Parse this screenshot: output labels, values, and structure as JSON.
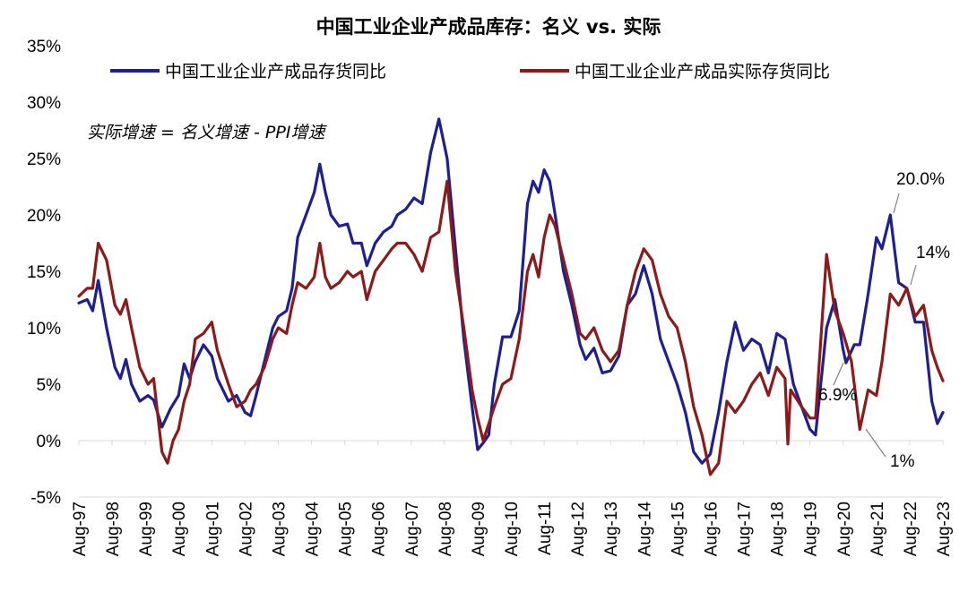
{
  "chart_data": {
    "type": "line",
    "title": "中国工业企业产成品库存：名义 vs. 实际",
    "note": "实际增速 = 名义增速 - PPI增速",
    "y_unit": "%",
    "ylim": [
      -5,
      35
    ],
    "yticks": [
      -5,
      0,
      5,
      10,
      15,
      20,
      25,
      30,
      35
    ],
    "ytick_labels": [
      "-5%",
      "0%",
      "5%",
      "10%",
      "15%",
      "20%",
      "25%",
      "30%",
      "35%"
    ],
    "xlim": [
      "1997-08",
      "2023-08"
    ],
    "xticks": [
      "Aug-97",
      "Aug-98",
      "Aug-99",
      "Aug-00",
      "Aug-01",
      "Aug-02",
      "Aug-03",
      "Aug-04",
      "Aug-05",
      "Aug-06",
      "Aug-07",
      "Aug-08",
      "Aug-09",
      "Aug-10",
      "Aug-11",
      "Aug-12",
      "Aug-13",
      "Aug-14",
      "Aug-15",
      "Aug-16",
      "Aug-17",
      "Aug-18",
      "Aug-19",
      "Aug-20",
      "Aug-21",
      "Aug-22",
      "Aug-23"
    ],
    "legend_position": "top",
    "grid": false,
    "series": [
      {
        "name": "中国工业企业产成品存货同比",
        "color": "#1f1f8f",
        "points": [
          [
            "1997-08",
            12.2
          ],
          [
            "1997-11",
            12.5
          ],
          [
            "1998-01",
            11.5
          ],
          [
            "1998-03",
            14.2
          ],
          [
            "1998-06",
            10.0
          ],
          [
            "1998-09",
            6.5
          ],
          [
            "1998-11",
            5.5
          ],
          [
            "1999-01",
            7.2
          ],
          [
            "1999-03",
            5.0
          ],
          [
            "1999-06",
            3.5
          ],
          [
            "1999-09",
            4.0
          ],
          [
            "1999-11",
            3.6
          ],
          [
            "2000-02",
            1.2
          ],
          [
            "2000-05",
            2.8
          ],
          [
            "2000-08",
            4.0
          ],
          [
            "2000-10",
            6.8
          ],
          [
            "2000-12",
            5.5
          ],
          [
            "2001-02",
            7.0
          ],
          [
            "2001-05",
            8.5
          ],
          [
            "2001-08",
            7.5
          ],
          [
            "2001-10",
            5.5
          ],
          [
            "2001-12",
            4.5
          ],
          [
            "2002-02",
            3.5
          ],
          [
            "2002-05",
            4.0
          ],
          [
            "2002-08",
            2.5
          ],
          [
            "2002-10",
            2.2
          ],
          [
            "2002-12",
            4.0
          ],
          [
            "2003-03",
            7.0
          ],
          [
            "2003-06",
            10.0
          ],
          [
            "2003-08",
            11.0
          ],
          [
            "2003-11",
            11.5
          ],
          [
            "2004-01",
            13.5
          ],
          [
            "2004-03",
            18.0
          ],
          [
            "2004-06",
            20.0
          ],
          [
            "2004-09",
            22.0
          ],
          [
            "2004-11",
            24.5
          ],
          [
            "2005-01",
            22.0
          ],
          [
            "2005-03",
            20.0
          ],
          [
            "2005-06",
            19.0
          ],
          [
            "2005-09",
            19.2
          ],
          [
            "2005-11",
            17.5
          ],
          [
            "2006-02",
            17.5
          ],
          [
            "2006-04",
            15.5
          ],
          [
            "2006-07",
            17.5
          ],
          [
            "2006-10",
            18.5
          ],
          [
            "2007-01",
            19.0
          ],
          [
            "2007-03",
            20.0
          ],
          [
            "2007-06",
            20.5
          ],
          [
            "2007-09",
            21.5
          ],
          [
            "2007-12",
            21.0
          ],
          [
            "2008-03",
            25.5
          ],
          [
            "2008-06",
            28.5
          ],
          [
            "2008-09",
            25.0
          ],
          [
            "2008-12",
            17.0
          ],
          [
            "2009-03",
            9.0
          ],
          [
            "2009-06",
            3.0
          ],
          [
            "2009-08",
            -0.8
          ],
          [
            "2009-10",
            -0.2
          ],
          [
            "2009-12",
            0.5
          ],
          [
            "2010-02",
            5.0
          ],
          [
            "2010-05",
            9.2
          ],
          [
            "2010-08",
            9.2
          ],
          [
            "2010-11",
            11.5
          ],
          [
            "2011-02",
            21.0
          ],
          [
            "2011-04",
            23.0
          ],
          [
            "2011-06",
            22.0
          ],
          [
            "2011-08",
            24.0
          ],
          [
            "2011-10",
            23.0
          ],
          [
            "2011-12",
            20.0
          ],
          [
            "2012-03",
            15.0
          ],
          [
            "2012-06",
            12.0
          ],
          [
            "2012-09",
            8.5
          ],
          [
            "2012-11",
            7.2
          ],
          [
            "2013-02",
            8.2
          ],
          [
            "2013-05",
            6.0
          ],
          [
            "2013-08",
            6.2
          ],
          [
            "2013-11",
            7.5
          ],
          [
            "2014-02",
            12.0
          ],
          [
            "2014-05",
            13.0
          ],
          [
            "2014-08",
            15.5
          ],
          [
            "2014-11",
            13.0
          ],
          [
            "2015-02",
            9.0
          ],
          [
            "2015-05",
            7.0
          ],
          [
            "2015-08",
            5.0
          ],
          [
            "2015-11",
            2.5
          ],
          [
            "2016-02",
            -1.0
          ],
          [
            "2016-05",
            -2.0
          ],
          [
            "2016-08",
            -1.2
          ],
          [
            "2016-11",
            2.5
          ],
          [
            "2017-02",
            7.0
          ],
          [
            "2017-05",
            10.5
          ],
          [
            "2017-08",
            8.0
          ],
          [
            "2017-11",
            9.0
          ],
          [
            "2018-02",
            8.5
          ],
          [
            "2018-05",
            6.0
          ],
          [
            "2018-08",
            9.5
          ],
          [
            "2018-11",
            9.0
          ],
          [
            "2019-02",
            5.0
          ],
          [
            "2019-05",
            3.0
          ],
          [
            "2019-08",
            1.0
          ],
          [
            "2019-10",
            0.5
          ],
          [
            "2020-02",
            10.0
          ],
          [
            "2020-05",
            12.5
          ],
          [
            "2020-08",
            8.0
          ],
          [
            "2020-09",
            6.9
          ],
          [
            "2020-12",
            8.5
          ],
          [
            "2021-02",
            8.5
          ],
          [
            "2021-05",
            13.0
          ],
          [
            "2021-08",
            18.0
          ],
          [
            "2021-10",
            17.0
          ],
          [
            "2022-01",
            20.0
          ],
          [
            "2022-04",
            14.0
          ],
          [
            "2022-07",
            13.5
          ],
          [
            "2022-10",
            10.5
          ],
          [
            "2023-01",
            10.5
          ],
          [
            "2023-04",
            3.5
          ],
          [
            "2023-06",
            1.5
          ],
          [
            "2023-08",
            2.5
          ]
        ]
      },
      {
        "name": "中国工业企业产成品实际存货同比",
        "color": "#8b1a1a",
        "points": [
          [
            "1997-08",
            12.8
          ],
          [
            "1997-11",
            13.5
          ],
          [
            "1998-01",
            13.5
          ],
          [
            "1998-03",
            17.5
          ],
          [
            "1998-06",
            16.0
          ],
          [
            "1998-09",
            12.0
          ],
          [
            "1998-11",
            11.2
          ],
          [
            "1999-01",
            12.5
          ],
          [
            "1999-03",
            10.0
          ],
          [
            "1999-06",
            6.5
          ],
          [
            "1999-09",
            5.0
          ],
          [
            "1999-11",
            5.5
          ],
          [
            "2000-02",
            -1.0
          ],
          [
            "2000-04",
            -2.0
          ],
          [
            "2000-06",
            0.0
          ],
          [
            "2000-08",
            1.0
          ],
          [
            "2000-10",
            3.5
          ],
          [
            "2000-12",
            5.0
          ],
          [
            "2001-02",
            9.0
          ],
          [
            "2001-05",
            9.5
          ],
          [
            "2001-08",
            10.5
          ],
          [
            "2001-10",
            8.0
          ],
          [
            "2001-12",
            6.5
          ],
          [
            "2002-02",
            5.0
          ],
          [
            "2002-05",
            3.0
          ],
          [
            "2002-08",
            3.5
          ],
          [
            "2002-10",
            4.5
          ],
          [
            "2002-12",
            5.0
          ],
          [
            "2003-03",
            6.5
          ],
          [
            "2003-06",
            9.0
          ],
          [
            "2003-08",
            10.0
          ],
          [
            "2003-11",
            9.5
          ],
          [
            "2004-01",
            12.0
          ],
          [
            "2004-03",
            14.0
          ],
          [
            "2004-06",
            13.5
          ],
          [
            "2004-09",
            14.5
          ],
          [
            "2004-11",
            17.5
          ],
          [
            "2005-01",
            14.5
          ],
          [
            "2005-03",
            13.5
          ],
          [
            "2005-06",
            14.0
          ],
          [
            "2005-09",
            15.0
          ],
          [
            "2005-11",
            14.5
          ],
          [
            "2006-02",
            15.0
          ],
          [
            "2006-04",
            12.5
          ],
          [
            "2006-07",
            15.0
          ],
          [
            "2006-10",
            16.0
          ],
          [
            "2007-01",
            17.0
          ],
          [
            "2007-03",
            17.5
          ],
          [
            "2007-06",
            17.5
          ],
          [
            "2007-09",
            16.5
          ],
          [
            "2007-12",
            15.0
          ],
          [
            "2008-03",
            18.0
          ],
          [
            "2008-06",
            18.5
          ],
          [
            "2008-09",
            23.0
          ],
          [
            "2008-12",
            15.0
          ],
          [
            "2009-03",
            10.0
          ],
          [
            "2009-06",
            4.5
          ],
          [
            "2009-08",
            2.0
          ],
          [
            "2009-10",
            0.0
          ],
          [
            "2009-12",
            1.5
          ],
          [
            "2010-02",
            3.0
          ],
          [
            "2010-05",
            5.0
          ],
          [
            "2010-08",
            5.5
          ],
          [
            "2010-11",
            9.0
          ],
          [
            "2011-02",
            15.0
          ],
          [
            "2011-04",
            16.5
          ],
          [
            "2011-06",
            14.5
          ],
          [
            "2011-08",
            18.0
          ],
          [
            "2011-10",
            20.0
          ],
          [
            "2011-12",
            19.0
          ],
          [
            "2012-03",
            16.0
          ],
          [
            "2012-06",
            13.0
          ],
          [
            "2012-09",
            9.5
          ],
          [
            "2012-11",
            9.0
          ],
          [
            "2013-02",
            10.0
          ],
          [
            "2013-05",
            8.0
          ],
          [
            "2013-08",
            7.0
          ],
          [
            "2013-11",
            8.0
          ],
          [
            "2014-02",
            12.0
          ],
          [
            "2014-05",
            15.0
          ],
          [
            "2014-08",
            17.0
          ],
          [
            "2014-11",
            16.0
          ],
          [
            "2015-02",
            13.0
          ],
          [
            "2015-05",
            11.0
          ],
          [
            "2015-08",
            10.0
          ],
          [
            "2015-11",
            7.0
          ],
          [
            "2016-02",
            3.0
          ],
          [
            "2016-05",
            0.5
          ],
          [
            "2016-08",
            -3.0
          ],
          [
            "2016-11",
            -2.0
          ],
          [
            "2017-02",
            3.5
          ],
          [
            "2017-05",
            2.5
          ],
          [
            "2017-08",
            3.5
          ],
          [
            "2017-11",
            5.0
          ],
          [
            "2018-02",
            6.0
          ],
          [
            "2018-05",
            4.0
          ],
          [
            "2018-08",
            6.5
          ],
          [
            "2018-11",
            5.5
          ],
          [
            "2018-12",
            -0.3
          ],
          [
            "2019-01",
            4.5
          ],
          [
            "2019-05",
            3.0
          ],
          [
            "2019-08",
            2.0
          ],
          [
            "2019-10",
            2.0
          ],
          [
            "2020-02",
            16.5
          ],
          [
            "2020-05",
            11.5
          ],
          [
            "2020-08",
            9.5
          ],
          [
            "2020-11",
            7.0
          ],
          [
            "2021-02",
            1.0
          ],
          [
            "2021-05",
            4.5
          ],
          [
            "2021-08",
            4.0
          ],
          [
            "2021-10",
            7.0
          ],
          [
            "2022-01",
            13.0
          ],
          [
            "2022-04",
            12.0
          ],
          [
            "2022-07",
            13.5
          ],
          [
            "2022-10",
            11.0
          ],
          [
            "2023-01",
            12.0
          ],
          [
            "2023-04",
            8.0
          ],
          [
            "2023-06",
            6.5
          ],
          [
            "2023-08",
            5.3
          ]
        ]
      }
    ],
    "annotations": [
      {
        "text": "20.0%"
      },
      {
        "text": "14%"
      },
      {
        "text": "6.9%"
      },
      {
        "text": "1%"
      }
    ]
  }
}
